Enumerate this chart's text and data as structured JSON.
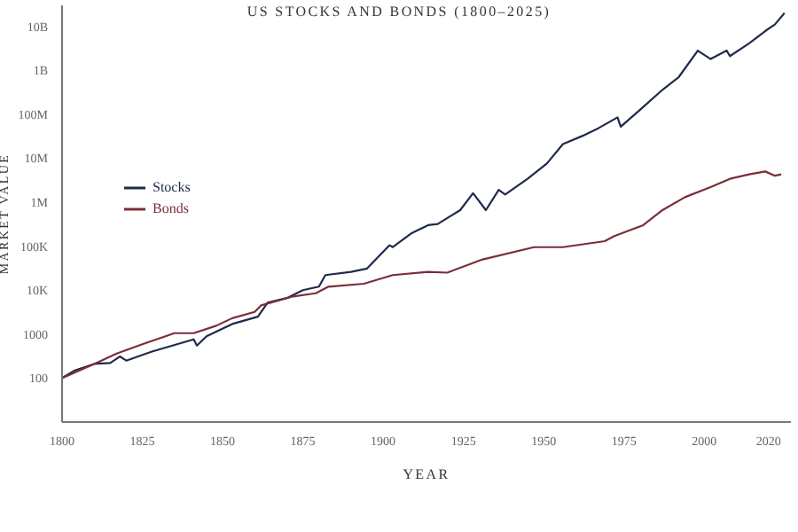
{
  "chart_data": {
    "type": "line",
    "title": "US STOCKS AND BONDS (1800–2025)",
    "xlabel": "YEAR",
    "ylabel": "MARKET VALUE",
    "log": true,
    "legend": "left",
    "marker": "none",
    "line_style": "solid",
    "xlim": [
      1800,
      2027
    ],
    "xticks": [
      1800,
      1825,
      1850,
      1875,
      1900,
      1925,
      1950,
      1975,
      2000,
      2020
    ],
    "ylim": [
      10,
      30000000000
    ],
    "yticks": [
      100,
      1000,
      {
        "value": 10000,
        "label": "10K"
      },
      {
        "value": 100000,
        "label": "100K"
      },
      {
        "value": 1000000,
        "label": "1M"
      },
      {
        "value": 10000000,
        "label": "10M"
      },
      {
        "value": 100000000,
        "label": "100M"
      },
      {
        "value": 1000000000,
        "label": "1B"
      },
      {
        "value": 10000000000,
        "label": "10B"
      }
    ],
    "series": [
      {
        "name": "Stocks",
        "color": "#1f2a4a",
        "x": [
          1800,
          1804,
          1810,
          1815,
          1818,
          1820,
          1828,
          1841,
          1842,
          1845,
          1853,
          1861,
          1864,
          1870,
          1875,
          1880,
          1882,
          1890,
          1895,
          1902,
          1903,
          1909,
          1914,
          1917,
          1924,
          1928,
          1932,
          1936,
          1938,
          1945,
          1951,
          1956,
          1962,
          1967,
          1973,
          1974,
          1980,
          1987,
          1992,
          1998,
          2002,
          2007,
          2008,
          2014,
          2019,
          2022,
          2025
        ],
        "values": [
          100,
          150,
          210,
          220,
          310,
          250,
          400,
          760,
          550,
          890,
          1700,
          2500,
          5200,
          6600,
          10000,
          12000,
          22000,
          26000,
          31000,
          105000,
          95000,
          200000,
          300000,
          320000,
          660000,
          1600000,
          660000,
          1900000,
          1500000,
          3400000,
          7600000,
          21000000,
          32000000,
          48000000,
          85000000,
          52000000,
          126000000,
          360000000,
          690000000,
          2800000000,
          1800000000,
          2800000000,
          2100000000,
          4100000000,
          7800000000,
          11000000000,
          20000000000
        ]
      },
      {
        "name": "Bonds",
        "color": "#7a2e38",
        "x": [
          1800,
          1810,
          1817,
          1825,
          1835,
          1841,
          1848,
          1853,
          1860,
          1862,
          1872,
          1879,
          1883,
          1894,
          1903,
          1914,
          1920,
          1931,
          1947,
          1956,
          1969,
          1972,
          1981,
          1987,
          1994,
          2002,
          2008,
          2014,
          2019,
          2022,
          2024
        ],
        "values": [
          100,
          210,
          360,
          590,
          1050,
          1050,
          1550,
          2300,
          3200,
          4500,
          7200,
          8500,
          12000,
          14000,
          22000,
          26000,
          25000,
          50000,
          95000,
          95000,
          130000,
          170000,
          300000,
          660000,
          1300000,
          2200000,
          3400000,
          4300000,
          5000000,
          4000000,
          4300000
        ]
      }
    ]
  }
}
